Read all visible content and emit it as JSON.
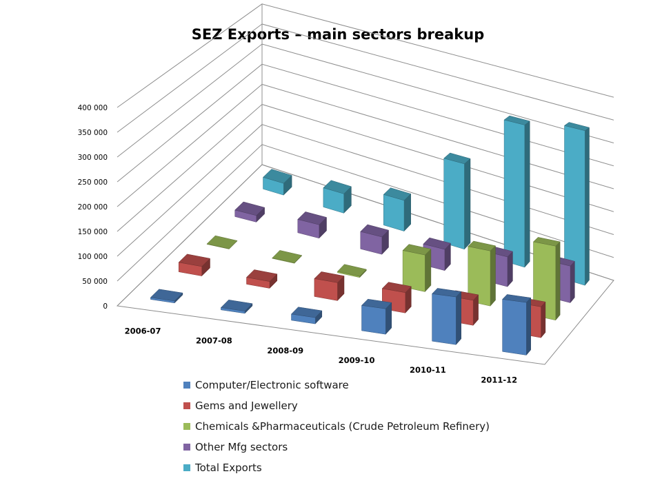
{
  "chart_data": {
    "type": "bar",
    "subtype": "3d-column",
    "title": "SEZ Exports – main sectors breakup",
    "categories": [
      "2006-07",
      "2007-08",
      "2008-09",
      "2009-10",
      "2010-11",
      "2011-12"
    ],
    "yticks": [
      "0",
      "50 000",
      "100 000",
      "150 000",
      "200 000",
      "250 000",
      "300 000",
      "350 000",
      "400 000"
    ],
    "ylim": [
      0,
      400000
    ],
    "grid": true,
    "legend_position": "bottom",
    "series": [
      {
        "name": "Computer/Electronic software",
        "color": "#4f81bd",
        "values": [
          4000,
          4500,
          12000,
          48000,
          88000,
          95000
        ]
      },
      {
        "name": "Gems and  Jewellery",
        "color": "#c0504d",
        "values": [
          20000,
          14000,
          36000,
          40000,
          48000,
          58000
        ]
      },
      {
        "name": "Chemicals &Pharmaceuticals (Crude Petroleum Refinery)",
        "color": "#9bbb59",
        "values": [
          500,
          800,
          2500,
          75000,
          110000,
          145000
        ]
      },
      {
        "name": "Other Mfg sectors",
        "color": "#8064a2",
        "values": [
          15000,
          30000,
          38000,
          45000,
          62000,
          75000
        ]
      },
      {
        "name": "Total Exports",
        "color": "#4bacc6",
        "values": [
          28000,
          45000,
          70000,
          190000,
          310000,
          330000
        ]
      }
    ]
  }
}
